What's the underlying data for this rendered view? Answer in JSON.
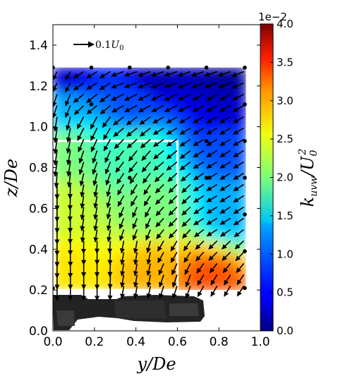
{
  "chart_data": {
    "type": "contour-quiver",
    "xlabel": "y/De",
    "ylabel": "z/De",
    "xlim": [
      0.0,
      1.0
    ],
    "ylim": [
      0.0,
      1.5
    ],
    "x_ticks": [
      "0.0",
      "0.2",
      "0.4",
      "0.6",
      "0.8",
      "1.0"
    ],
    "y_ticks": [
      "0.0",
      "0.2",
      "0.4",
      "0.6",
      "0.8",
      "1.0",
      "1.2",
      "1.4"
    ],
    "reference_vector": {
      "label": "0.1U0",
      "magnitude": 0.1
    },
    "colorbar": {
      "label": "k_uvw/U_0^2",
      "offset_text": "1e−2",
      "range": [
        0.0,
        4.0
      ],
      "ticks": [
        "0.0",
        "0.5",
        "1.0",
        "1.5",
        "2.0",
        "2.5",
        "3.0",
        "3.5",
        "4.0"
      ],
      "colormap": "jet"
    },
    "field_extent": {
      "y": [
        0.0,
        0.93
      ],
      "z": [
        0.2,
        1.29
      ]
    },
    "contour_samples": [
      {
        "y": 0.05,
        "z": 1.25,
        "k": 0.3
      },
      {
        "y": 0.5,
        "z": 1.25,
        "k": 0.2
      },
      {
        "y": 0.85,
        "z": 1.25,
        "k": 0.1
      },
      {
        "y": 0.05,
        "z": 1.1,
        "k": 1.2
      },
      {
        "y": 0.4,
        "z": 1.1,
        "k": 0.8
      },
      {
        "y": 0.85,
        "z": 1.1,
        "k": 0.3
      },
      {
        "y": 0.05,
        "z": 0.9,
        "k": 2.0
      },
      {
        "y": 0.4,
        "z": 0.9,
        "k": 1.8
      },
      {
        "y": 0.85,
        "z": 0.9,
        "k": 0.8
      },
      {
        "y": 0.05,
        "z": 0.6,
        "k": 2.3
      },
      {
        "y": 0.5,
        "z": 0.6,
        "k": 2.0
      },
      {
        "y": 0.85,
        "z": 0.6,
        "k": 1.2
      },
      {
        "y": 0.05,
        "z": 0.3,
        "k": 2.6
      },
      {
        "y": 0.5,
        "z": 0.3,
        "k": 2.8
      },
      {
        "y": 0.75,
        "z": 0.25,
        "k": 3.2
      }
    ],
    "overlay_box": {
      "y": [
        0.0,
        0.6
      ],
      "z": [
        0.2,
        0.93
      ],
      "color": "#ffffff"
    },
    "vectors": [
      {
        "y": 0.02,
        "z": 1.25,
        "u": -0.02,
        "w": -0.04
      },
      {
        "y": 0.2,
        "z": 1.25,
        "u": -0.05,
        "w": -0.03
      },
      {
        "y": 0.4,
        "z": 1.25,
        "u": -0.06,
        "w": -0.02
      },
      {
        "y": 0.6,
        "z": 1.25,
        "u": -0.06,
        "w": -0.02
      },
      {
        "y": 0.8,
        "z": 1.25,
        "u": -0.06,
        "w": -0.02
      },
      {
        "y": 0.02,
        "z": 1.15,
        "u": -0.02,
        "w": -0.06
      },
      {
        "y": 0.2,
        "z": 1.15,
        "u": -0.05,
        "w": -0.04
      },
      {
        "y": 0.4,
        "z": 1.15,
        "u": -0.06,
        "w": -0.03
      },
      {
        "y": 0.6,
        "z": 1.15,
        "u": -0.06,
        "w": -0.03
      },
      {
        "y": 0.8,
        "z": 1.15,
        "u": -0.05,
        "w": -0.03
      },
      {
        "y": 0.02,
        "z": 1.0,
        "u": -0.01,
        "w": -0.07
      },
      {
        "y": 0.2,
        "z": 1.0,
        "u": -0.03,
        "w": -0.06
      },
      {
        "y": 0.4,
        "z": 1.0,
        "u": -0.05,
        "w": -0.04
      },
      {
        "y": 0.6,
        "z": 1.0,
        "u": -0.05,
        "w": -0.03
      },
      {
        "y": 0.8,
        "z": 1.0,
        "u": -0.05,
        "w": -0.03
      },
      {
        "y": 0.02,
        "z": 0.85,
        "u": -0.01,
        "w": -0.07
      },
      {
        "y": 0.2,
        "z": 0.85,
        "u": -0.02,
        "w": -0.06
      },
      {
        "y": 0.4,
        "z": 0.85,
        "u": -0.04,
        "w": -0.05
      },
      {
        "y": 0.6,
        "z": 0.85,
        "u": -0.05,
        "w": -0.04
      },
      {
        "y": 0.8,
        "z": 0.85,
        "u": -0.05,
        "w": -0.03
      },
      {
        "y": 0.02,
        "z": 0.7,
        "u": 0.0,
        "w": -0.07
      },
      {
        "y": 0.2,
        "z": 0.7,
        "u": -0.01,
        "w": -0.06
      },
      {
        "y": 0.4,
        "z": 0.7,
        "u": -0.03,
        "w": -0.05
      },
      {
        "y": 0.6,
        "z": 0.7,
        "u": -0.04,
        "w": -0.04
      },
      {
        "y": 0.8,
        "z": 0.7,
        "u": -0.05,
        "w": -0.03
      },
      {
        "y": 0.02,
        "z": 0.55,
        "u": 0.0,
        "w": -0.07
      },
      {
        "y": 0.2,
        "z": 0.55,
        "u": -0.01,
        "w": -0.06
      },
      {
        "y": 0.4,
        "z": 0.55,
        "u": -0.02,
        "w": -0.05
      },
      {
        "y": 0.6,
        "z": 0.55,
        "u": -0.04,
        "w": -0.04
      },
      {
        "y": 0.8,
        "z": 0.55,
        "u": -0.05,
        "w": -0.03
      },
      {
        "y": 0.02,
        "z": 0.4,
        "u": 0.0,
        "w": -0.07
      },
      {
        "y": 0.2,
        "z": 0.4,
        "u": 0.0,
        "w": -0.06
      },
      {
        "y": 0.4,
        "z": 0.4,
        "u": -0.01,
        "w": -0.06
      },
      {
        "y": 0.6,
        "z": 0.4,
        "u": -0.03,
        "w": -0.05
      },
      {
        "y": 0.8,
        "z": 0.4,
        "u": -0.04,
        "w": -0.04
      },
      {
        "y": 0.02,
        "z": 0.26,
        "u": 0.0,
        "w": -0.07
      },
      {
        "y": 0.2,
        "z": 0.26,
        "u": 0.0,
        "w": -0.07
      },
      {
        "y": 0.4,
        "z": 0.26,
        "u": -0.01,
        "w": -0.06
      },
      {
        "y": 0.6,
        "z": 0.26,
        "u": -0.02,
        "w": -0.06
      },
      {
        "y": 0.8,
        "z": 0.26,
        "u": -0.03,
        "w": -0.05
      }
    ],
    "probe_points": [
      {
        "y": 0.0,
        "z": 1.29
      },
      {
        "y": 0.185,
        "z": 1.29
      },
      {
        "y": 0.37,
        "z": 1.29
      },
      {
        "y": 0.555,
        "z": 1.29
      },
      {
        "y": 0.74,
        "z": 1.29
      },
      {
        "y": 0.925,
        "z": 1.29
      },
      {
        "y": 0.0,
        "z": 1.11
      },
      {
        "y": 0.185,
        "z": 1.11
      },
      {
        "y": 0.925,
        "z": 1.11
      },
      {
        "y": 0.74,
        "z": 0.93
      },
      {
        "y": 0.925,
        "z": 0.93
      },
      {
        "y": 0.37,
        "z": 0.75
      },
      {
        "y": 0.74,
        "z": 0.75
      },
      {
        "y": 0.925,
        "z": 0.75
      },
      {
        "y": 0.925,
        "z": 0.57
      },
      {
        "y": 0.925,
        "z": 0.39
      },
      {
        "y": 0.0,
        "z": 0.21
      },
      {
        "y": 0.925,
        "z": 0.21
      }
    ]
  }
}
